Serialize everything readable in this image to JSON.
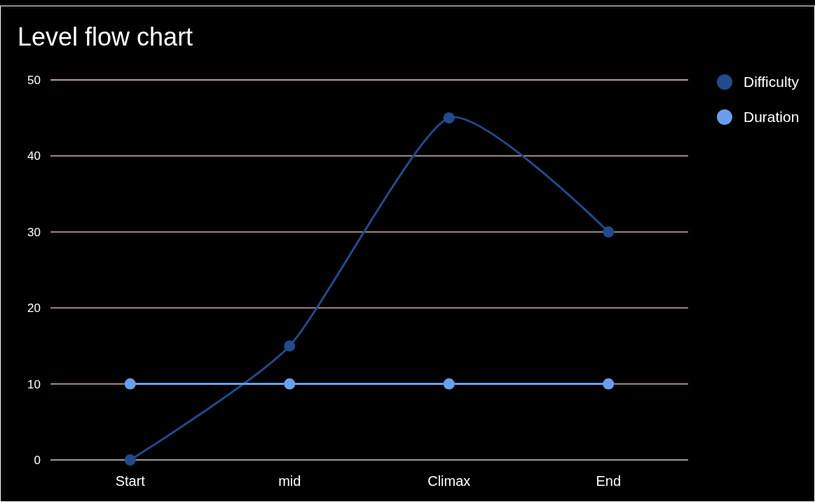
{
  "chart_data": {
    "type": "line",
    "title": "Level flow chart",
    "categories": [
      "Start",
      "mid",
      "Climax",
      "End"
    ],
    "series": [
      {
        "name": "Difficulty",
        "color": "#234a8c",
        "values": [
          0,
          15,
          45,
          30
        ]
      },
      {
        "name": "Duration",
        "color": "#6d9eeb",
        "values": [
          10,
          10,
          10,
          10
        ]
      }
    ],
    "ylim": [
      0,
      50
    ],
    "yticks": [
      0,
      10,
      20,
      30,
      40,
      50
    ],
    "grid": "y",
    "legend": "top right",
    "marker": "circle",
    "line_style": "solid"
  }
}
